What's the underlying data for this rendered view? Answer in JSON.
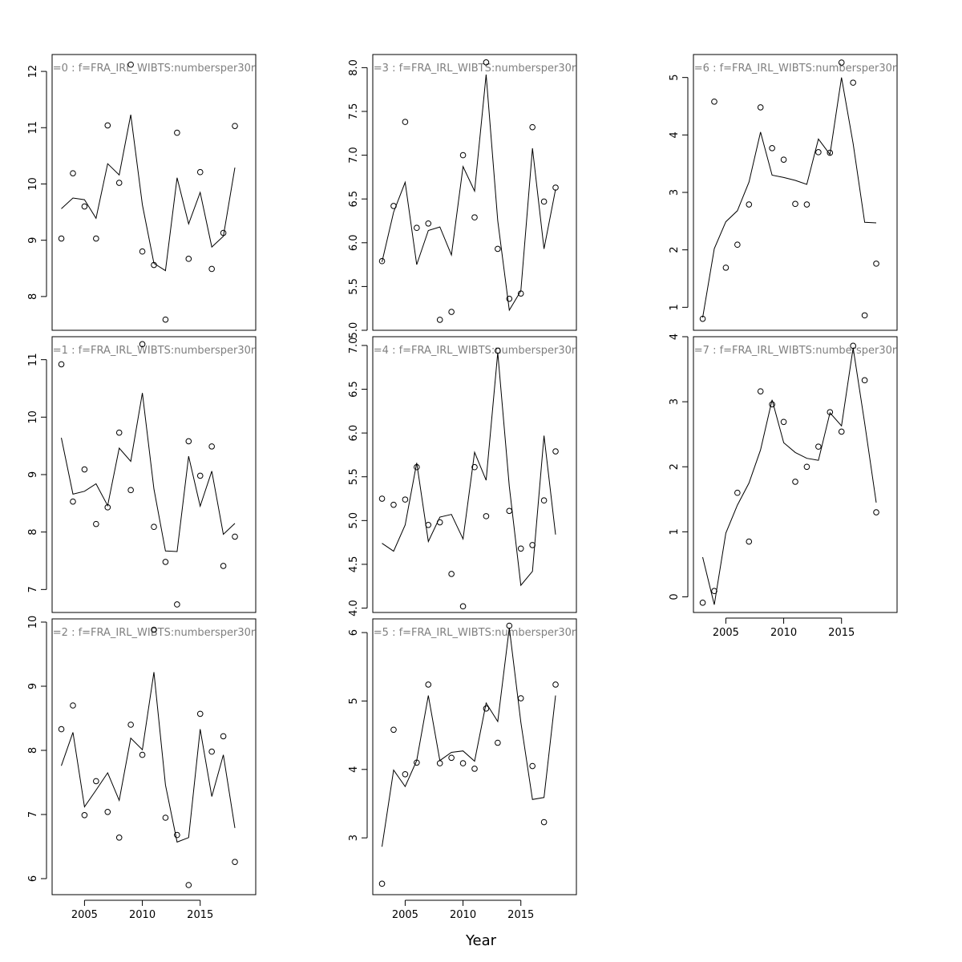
{
  "chart_data": {
    "type": "scatter",
    "xlabel": "Year",
    "x_ticks": [
      2005,
      2010,
      2015
    ],
    "x_range": [
      2002.2,
      2019.8
    ],
    "years": [
      2003,
      2004,
      2005,
      2006,
      2007,
      2008,
      2009,
      2010,
      2011,
      2012,
      2013,
      2014,
      2015,
      2016,
      2017,
      2018
    ],
    "legend": "none",
    "panels": [
      {
        "title": "=0 : f=FRA_IRL_WIBTS:numbersper30r",
        "ylim": [
          7.4,
          12.3
        ],
        "y_ticks": [
          8,
          9,
          10,
          11,
          12
        ],
        "points": [
          9.03,
          10.19,
          9.6,
          9.03,
          11.04,
          10.02,
          12.12,
          8.8,
          8.56,
          7.59,
          10.91,
          8.67,
          10.21,
          8.49,
          9.13,
          11.03
        ],
        "fitted": [
          9.56,
          9.75,
          9.72,
          9.39,
          10.36,
          10.16,
          11.23,
          9.63,
          8.59,
          8.46,
          10.11,
          9.29,
          9.85,
          8.88,
          9.07,
          10.29
        ]
      },
      {
        "title": "=1 : f=FRA_IRL_WIBTS:numbersper30r",
        "ylim": [
          6.6,
          11.4
        ],
        "y_ticks": [
          7,
          8,
          9,
          10,
          11
        ],
        "points": [
          10.92,
          8.53,
          9.09,
          8.14,
          8.43,
          9.73,
          8.73,
          11.27,
          8.09,
          7.48,
          6.74,
          9.58,
          8.98,
          9.49,
          7.41,
          7.92
        ],
        "fitted": [
          9.64,
          8.66,
          8.71,
          8.84,
          8.46,
          9.46,
          9.23,
          10.42,
          8.75,
          7.67,
          7.66,
          9.32,
          8.45,
          9.06,
          7.96,
          8.15
        ]
      },
      {
        "title": "=2 : f=FRA_IRL_WIBTS:numbersper30r",
        "ylim": [
          5.75,
          10.05
        ],
        "y_ticks": [
          6,
          7,
          8,
          9,
          10
        ],
        "points": [
          8.33,
          8.7,
          6.99,
          7.52,
          7.04,
          6.64,
          8.4,
          7.93,
          9.88,
          6.95,
          6.68,
          5.9,
          8.57,
          7.98,
          8.22,
          6.26
        ],
        "fitted": [
          7.76,
          8.28,
          7.12,
          7.38,
          7.65,
          7.22,
          8.19,
          8.01,
          9.22,
          7.46,
          6.57,
          6.64,
          8.33,
          7.28,
          7.93,
          6.79
        ]
      },
      {
        "title": "=3 : f=FRA_IRL_WIBTS:numbersper30r",
        "ylim": [
          5.0,
          8.15
        ],
        "y_ticks": [
          5.0,
          5.5,
          6.0,
          6.5,
          7.0,
          7.5,
          8.0
        ],
        "points": [
          5.79,
          6.42,
          7.38,
          6.17,
          6.22,
          5.12,
          5.21,
          7.0,
          6.29,
          8.06,
          5.93,
          5.36,
          5.42,
          7.32,
          6.47,
          6.63
        ],
        "fitted": [
          5.78,
          6.35,
          6.69,
          5.75,
          6.14,
          6.18,
          5.86,
          6.87,
          6.59,
          7.92,
          6.25,
          5.23,
          5.45,
          7.08,
          5.93,
          6.61
        ]
      },
      {
        "title": "=4 : f=FRA_IRL_WIBTS:numbersper30r",
        "ylim": [
          3.95,
          7.1
        ],
        "y_ticks": [
          4.0,
          4.5,
          5.0,
          5.5,
          6.0,
          6.5,
          7.0
        ],
        "points": [
          5.25,
          5.18,
          5.24,
          5.61,
          4.95,
          4.98,
          4.39,
          4.02,
          5.61,
          5.05,
          6.94,
          5.11,
          4.68,
          4.72,
          5.23,
          5.79
        ],
        "fitted": [
          4.74,
          4.65,
          4.95,
          5.66,
          4.76,
          5.04,
          5.07,
          4.79,
          5.78,
          5.46,
          6.92,
          5.39,
          4.26,
          4.42,
          5.97,
          4.84
        ]
      },
      {
        "title": "=5 : f=FRA_IRL_WIBTS:numbersper30r",
        "ylim": [
          2.17,
          6.2
        ],
        "y_ticks": [
          3,
          4,
          5,
          6
        ],
        "points": [
          2.33,
          4.58,
          3.93,
          4.1,
          5.24,
          4.09,
          4.17,
          4.09,
          4.01,
          4.89,
          4.39,
          6.1,
          5.04,
          4.05,
          3.23,
          5.24
        ],
        "fitted": [
          2.87,
          3.99,
          3.75,
          4.13,
          5.08,
          4.13,
          4.25,
          4.27,
          4.12,
          4.97,
          4.7,
          6.07,
          4.69,
          3.56,
          3.59,
          5.08
        ]
      },
      {
        "title": "=6 : f=FRA_IRL_WIBTS:numbersper30r",
        "ylim": [
          0.6,
          5.4
        ],
        "y_ticks": [
          1,
          2,
          3,
          4,
          5
        ],
        "points": [
          0.8,
          4.58,
          1.69,
          2.09,
          2.79,
          4.48,
          3.77,
          3.57,
          2.8,
          2.79,
          3.7,
          3.69,
          5.26,
          4.91,
          0.86,
          1.76
        ],
        "fitted": [
          0.82,
          2.02,
          2.49,
          2.68,
          3.18,
          4.05,
          3.3,
          3.26,
          3.21,
          3.14,
          3.93,
          3.66,
          5.0,
          3.85,
          2.48,
          2.47
        ]
      },
      {
        "title": "=7 : f=FRA_IRL_WIBTS:numbersper30r",
        "ylim": [
          -0.24,
          4.0
        ],
        "y_ticks": [
          0,
          1,
          2,
          3,
          4
        ],
        "points": [
          -0.09,
          0.09,
          null,
          1.6,
          0.85,
          3.16,
          2.96,
          2.69,
          1.77,
          2.0,
          2.31,
          2.84,
          2.54,
          3.86,
          3.33,
          1.3
        ],
        "fitted": [
          0.61,
          -0.12,
          0.98,
          1.41,
          1.75,
          2.26,
          3.03,
          2.37,
          2.22,
          2.13,
          2.1,
          2.83,
          2.63,
          3.83,
          2.67,
          1.45
        ]
      }
    ]
  }
}
